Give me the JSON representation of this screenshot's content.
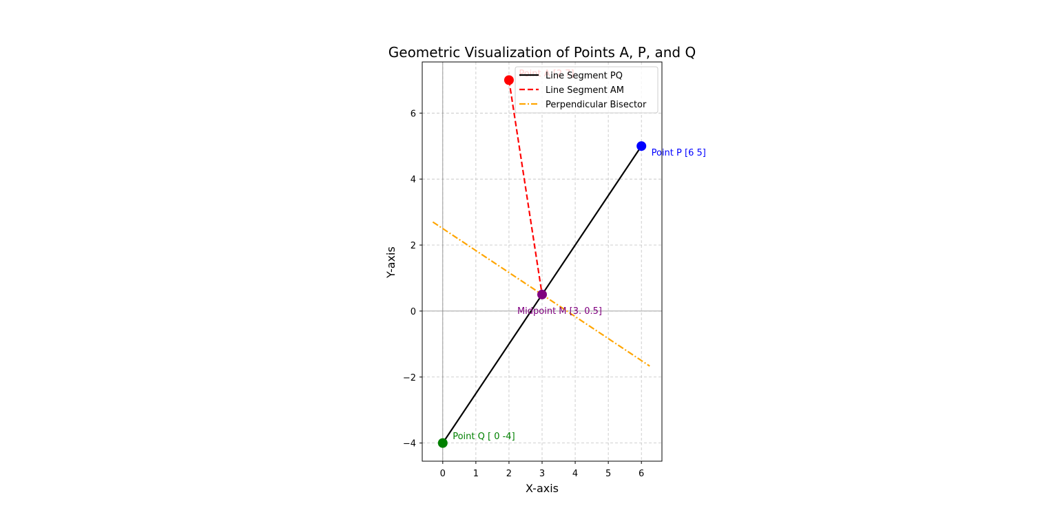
{
  "chart_data": {
    "type": "line",
    "title": "Geometric Visualization of Points A, P, and Q",
    "xlabel": "X-axis",
    "ylabel": "Y-axis",
    "xlim": [
      -0.62,
      6.62
    ],
    "ylim": [
      -4.55,
      7.55
    ],
    "xticks": [
      0,
      1,
      2,
      3,
      4,
      5,
      6
    ],
    "yticks": [
      -4,
      -2,
      0,
      2,
      4,
      6
    ],
    "tick_labels_x": [
      "0",
      "1",
      "2",
      "3",
      "4",
      "5",
      "6"
    ],
    "tick_labels_y": [
      "−4",
      "−2",
      "0",
      "2",
      "4",
      "6"
    ],
    "grid": true,
    "grid_style": "dashed",
    "legend_position": "upper right",
    "series": [
      {
        "name": "Line Segment PQ",
        "color": "#000000",
        "style": "solid",
        "x": [
          6,
          0
        ],
        "y": [
          5,
          -4
        ]
      },
      {
        "name": "Line Segment AM",
        "color": "#ff0000",
        "style": "dashed",
        "x": [
          2,
          3
        ],
        "y": [
          7,
          0.5
        ]
      },
      {
        "name": "Perpendicular Bisector",
        "color": "#ffa500",
        "style": "dashdot",
        "x": [
          -0.3,
          6.25
        ],
        "y": [
          2.7,
          -1.667
        ]
      }
    ],
    "points": [
      {
        "label": "Point A [2 7]",
        "x": 2,
        "y": 7,
        "color": "#ff0000",
        "label_dx": 0.3,
        "label_dy": 0.2
      },
      {
        "label": "Point P [6 5]",
        "x": 6,
        "y": 5,
        "color": "#0000ff",
        "label_dx": 0.3,
        "label_dy": -0.2
      },
      {
        "label": "Point Q [ 0 -4]",
        "x": 0,
        "y": -4,
        "color": "#008000",
        "label_dx": 0.3,
        "label_dy": 0.2
      },
      {
        "label": "Midpoint M [3.  0.5]",
        "x": 3,
        "y": 0.5,
        "color": "#800080",
        "label_dx": -0.75,
        "label_dy": -0.5
      }
    ],
    "colors": {
      "axes_line": "#808080",
      "grid": "#c0c0c0"
    }
  }
}
